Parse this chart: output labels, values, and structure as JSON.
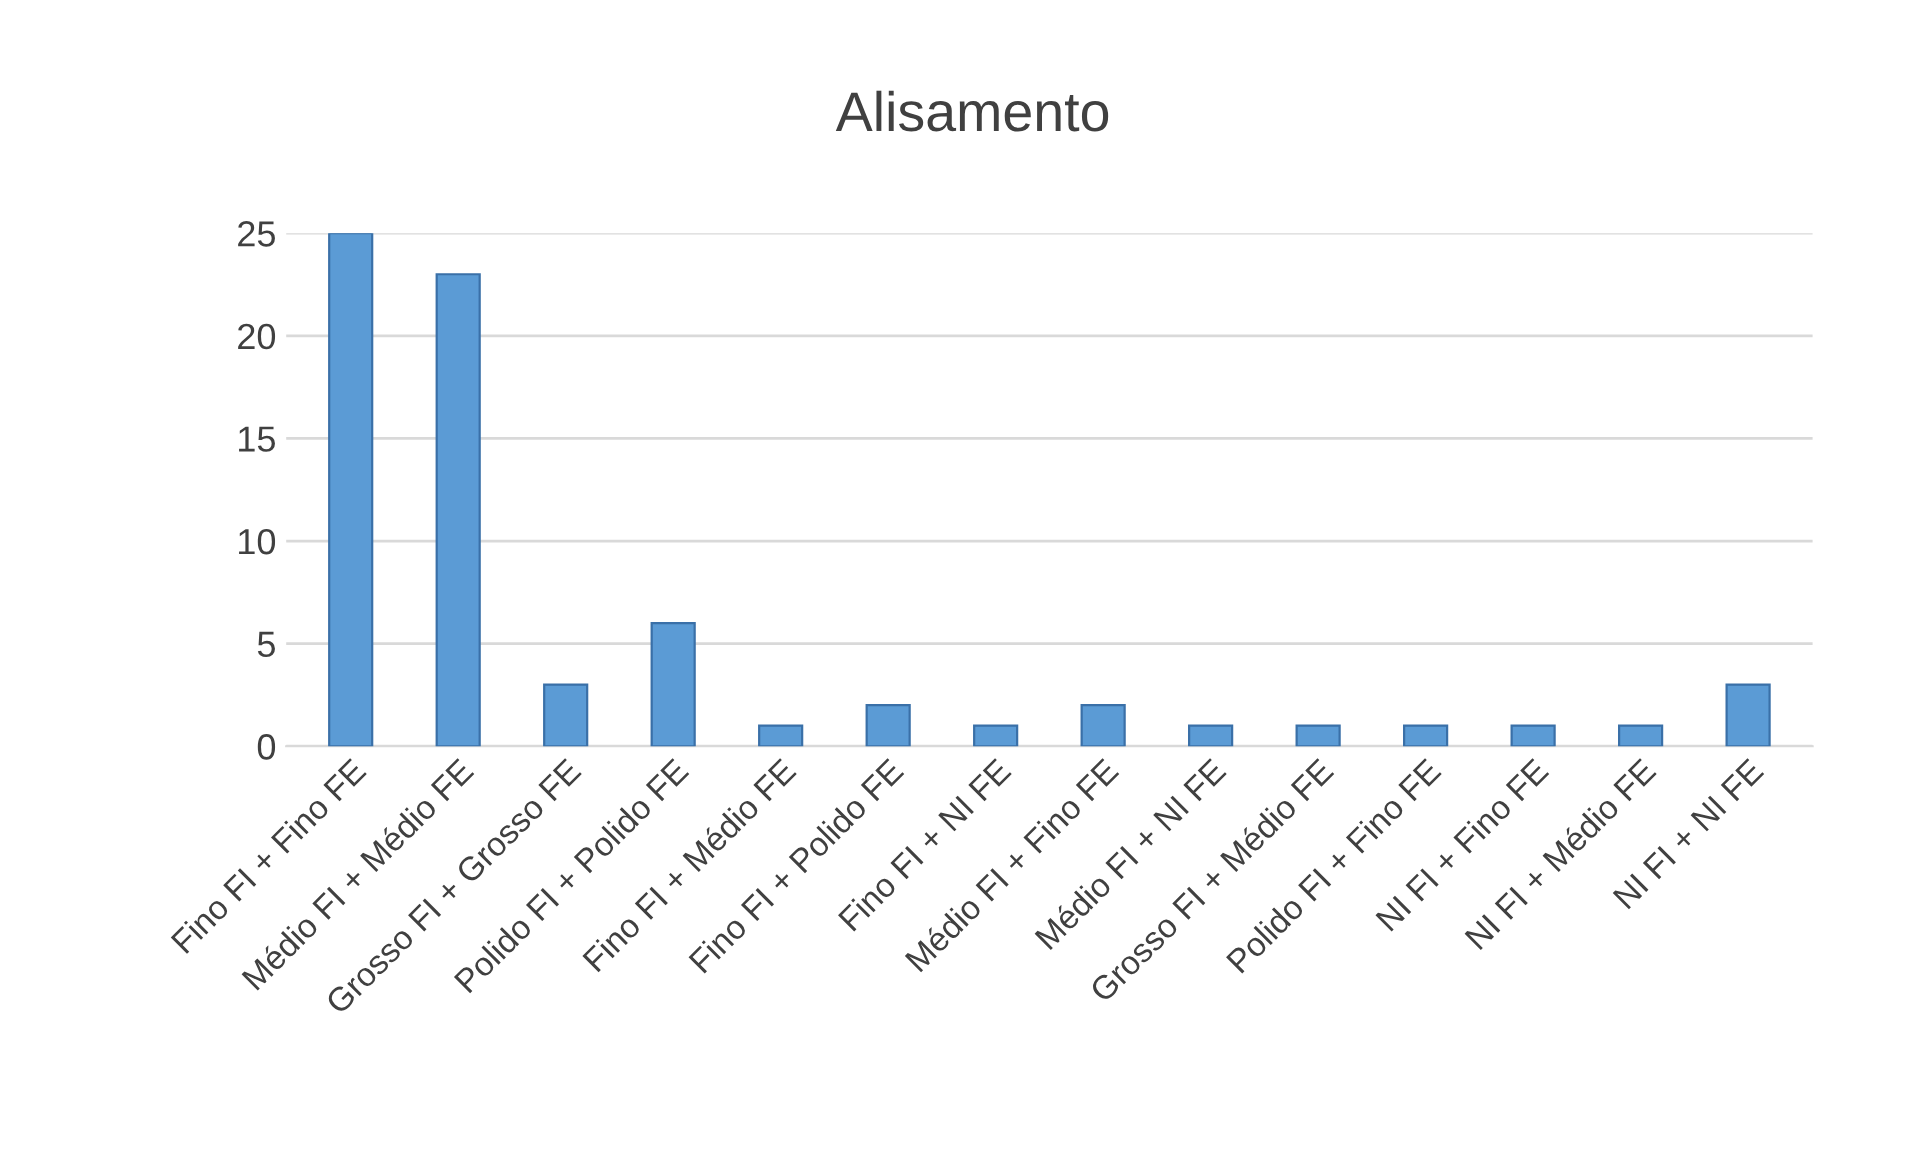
{
  "chart_data": {
    "type": "bar",
    "title": "Alisamento",
    "categories": [
      "Fino FI + Fino FE",
      "Médio FI + Médio FE",
      "Grosso FI + Grosso FE",
      "Polido FI + Polido FE",
      "Fino FI + Médio FE",
      "Fino FI + Polido FE",
      "Fino FI + NI FE",
      "Médio FI + Fino FE",
      "Médio FI + NI FE",
      "Grosso FI + Médio FE",
      "Polido FI + Fino FE",
      "NI FI + Fino FE",
      "NI FI + Médio FE",
      "NI FI + NI FE"
    ],
    "values": [
      25,
      23,
      3,
      6,
      1,
      2,
      1,
      2,
      1,
      1,
      1,
      1,
      1,
      3
    ],
    "color": "#5b9bd5",
    "ylim": [
      0,
      25
    ],
    "yticks": [
      0,
      5,
      10,
      15,
      20,
      25
    ],
    "grid": "y"
  }
}
